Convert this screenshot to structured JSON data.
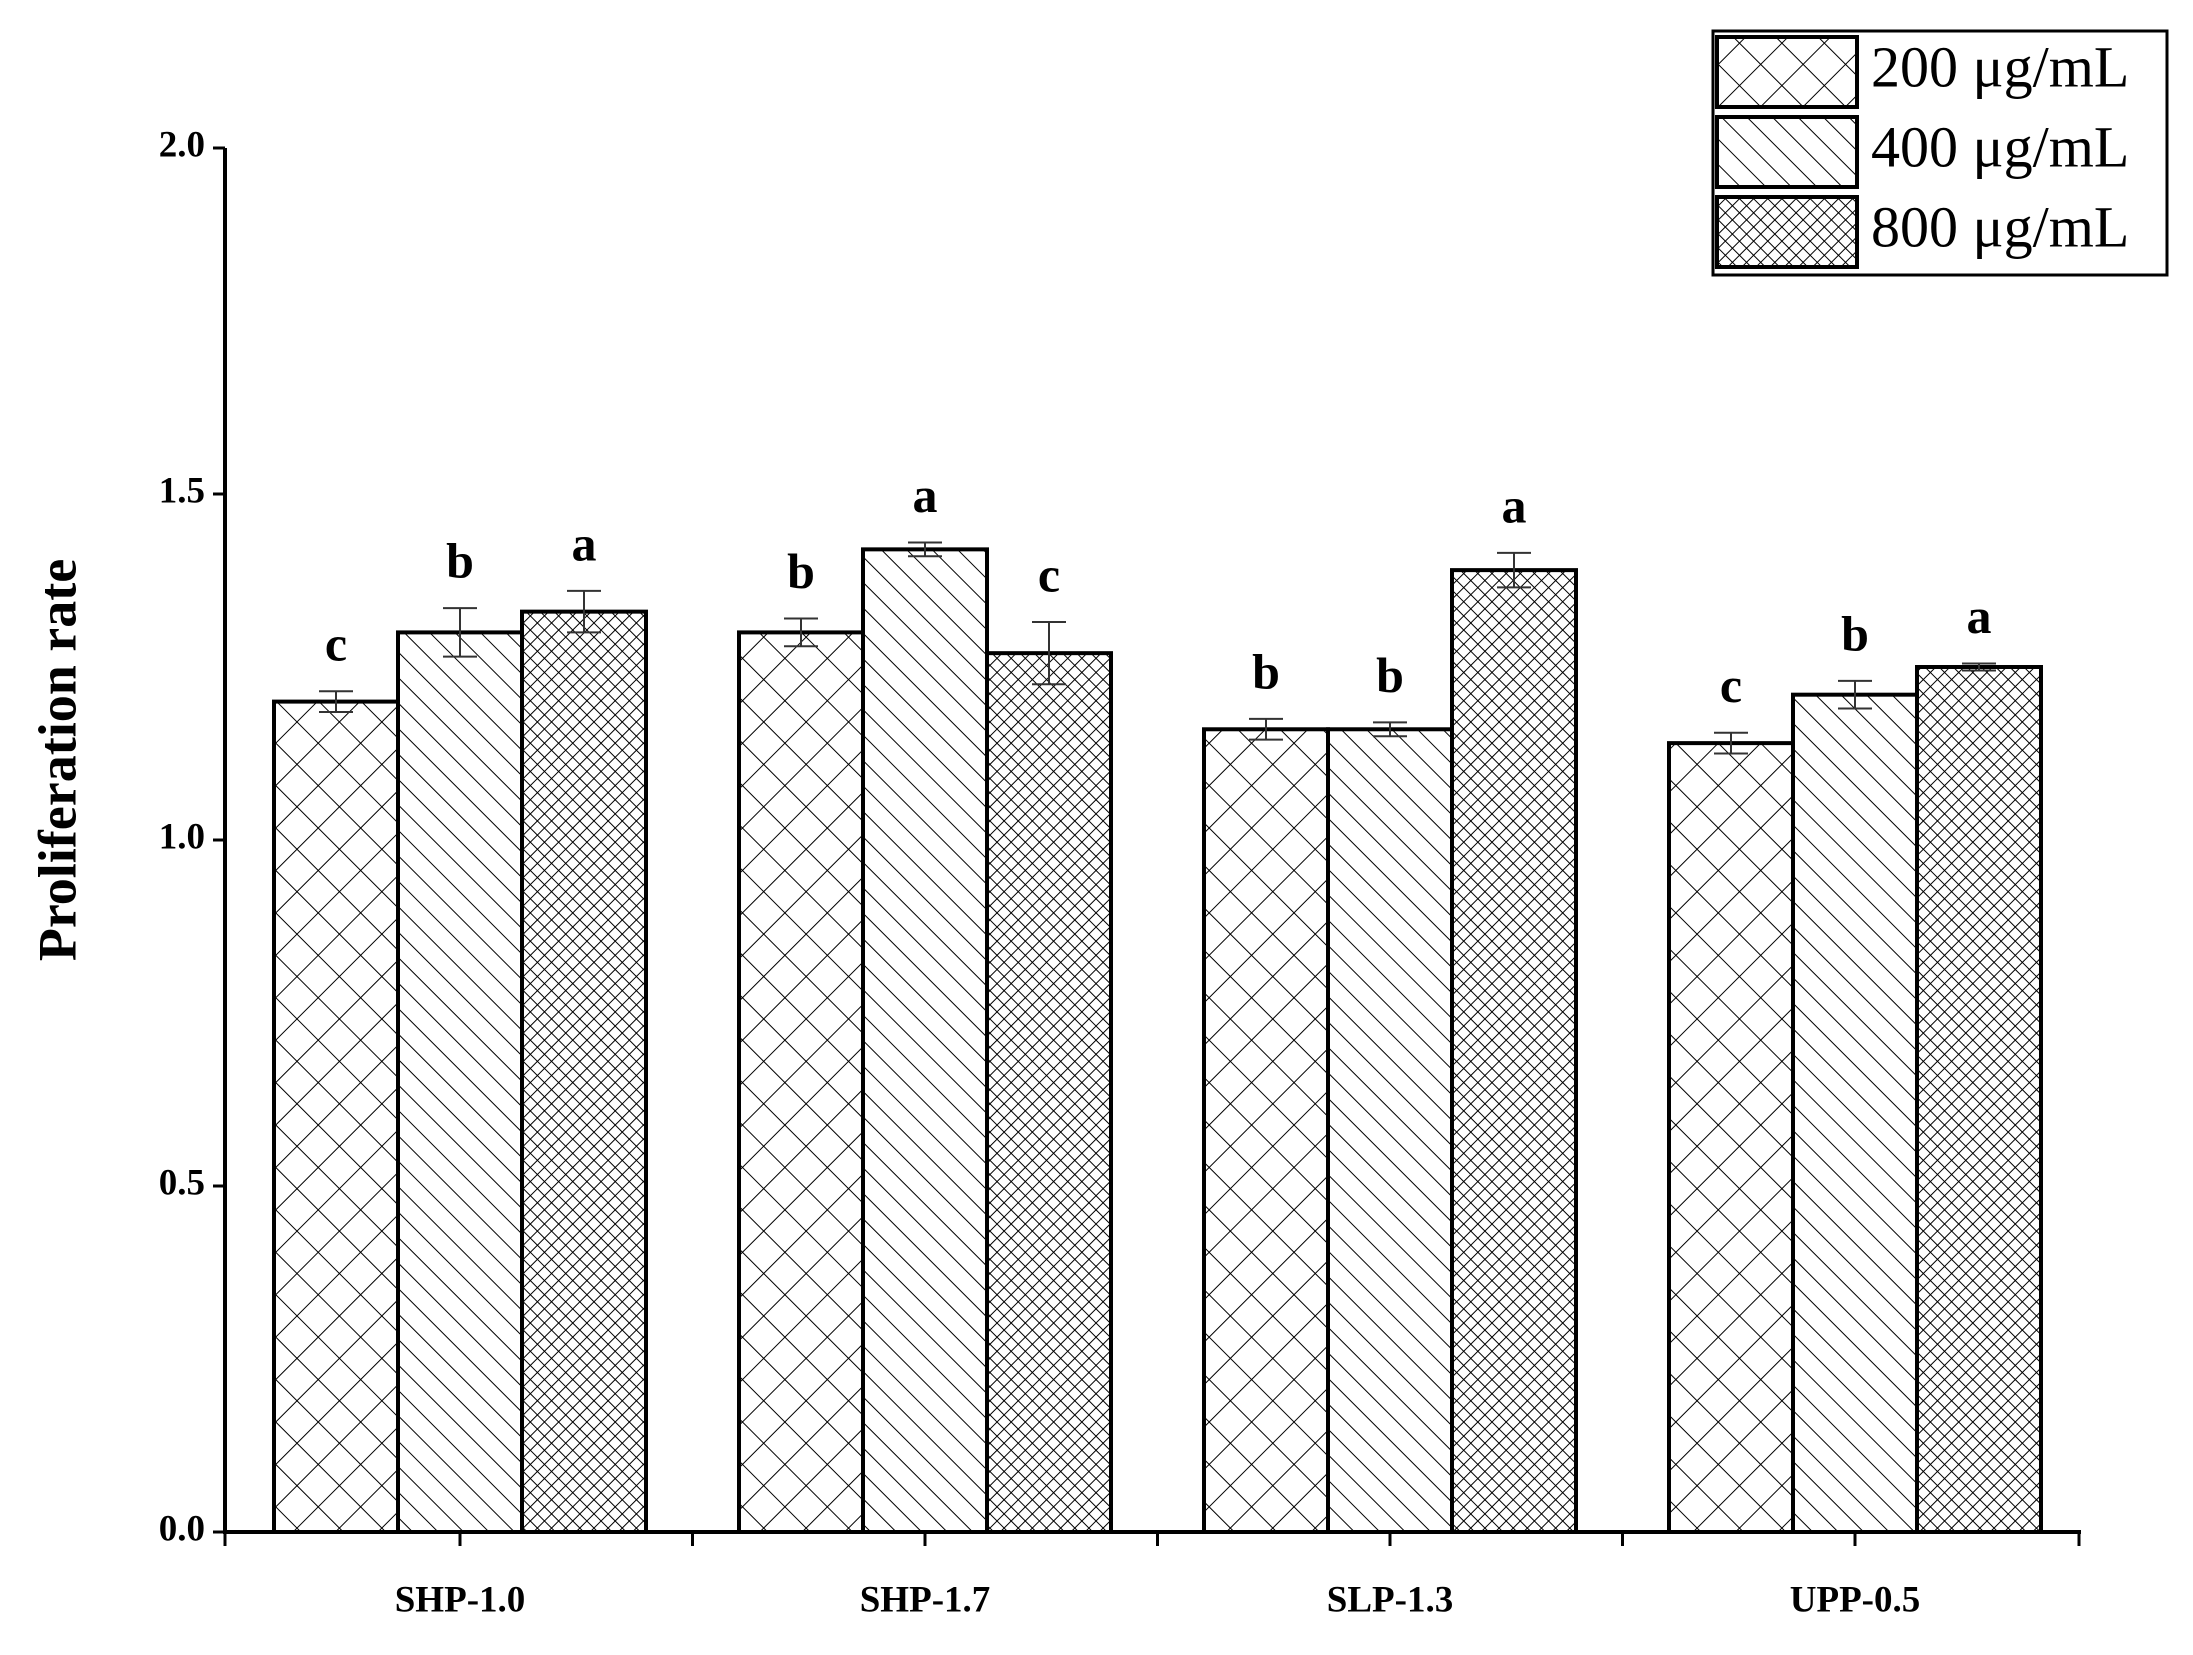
{
  "chart_data": {
    "type": "bar",
    "y_label": "Proliferation rate",
    "categories": [
      "SHP-1.0",
      "SHP-1.7",
      "SLP-1.3",
      "UPP-0.5"
    ],
    "series": [
      {
        "name": "200 μg/mL",
        "color": "#000000",
        "hatch": "cross",
        "values": [
          1.2,
          1.3,
          1.16,
          1.14
        ],
        "errors": [
          0.015,
          0.02,
          0.015,
          0.015
        ],
        "letters": [
          "c",
          "b",
          "b",
          "c"
        ]
      },
      {
        "name": "400 μg/mL",
        "color": "#000000",
        "hatch": "diagonal",
        "values": [
          1.3,
          1.42,
          1.16,
          1.21
        ],
        "errors": [
          0.035,
          0.01,
          0.01,
          0.02
        ],
        "letters": [
          "b",
          "a",
          "b",
          "b"
        ]
      },
      {
        "name": "800 μg/mL",
        "color": "#000000",
        "hatch": "dense-cross",
        "values": [
          1.33,
          1.27,
          1.39,
          1.25
        ],
        "errors": [
          0.03,
          0.045,
          0.025,
          0.005
        ],
        "letters": [
          "a",
          "c",
          "a",
          "a"
        ]
      }
    ],
    "ylim": [
      0,
      2.0
    ],
    "yticks": [
      {
        "value": 0,
        "label": "0.0"
      },
      {
        "value": 0.5,
        "label": "0.5"
      },
      {
        "value": 1,
        "label": "1.0"
      },
      {
        "value": 1.5,
        "label": "1.5"
      },
      {
        "value": 2,
        "label": "2.0"
      }
    ],
    "legend": "top-right"
  }
}
